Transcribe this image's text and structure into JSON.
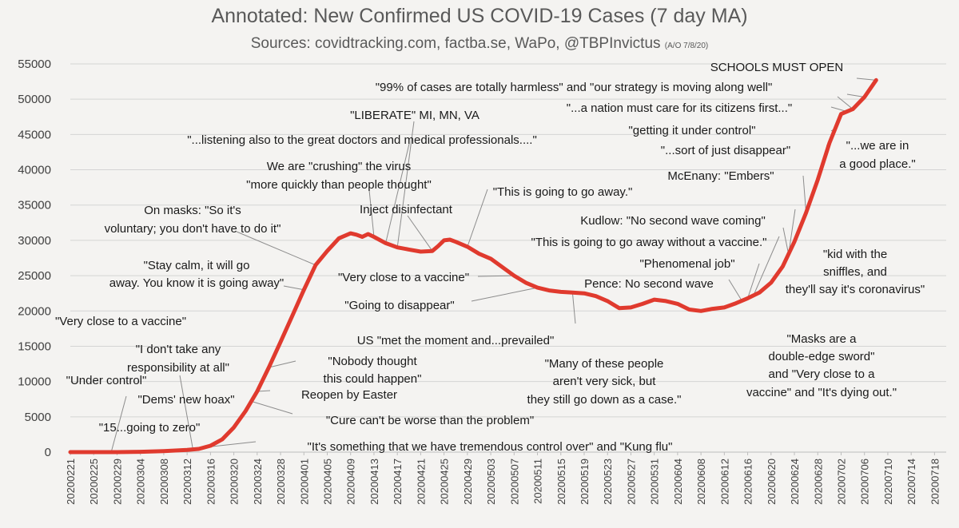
{
  "chart_data": {
    "type": "line",
    "title": "Annotated: New Confirmed US COVID-19 Cases (7 day MA)",
    "subtitle": "Sources: covidtracking.com, factba.se, WaPo, @TBPInvictus",
    "subtitle_note": "(A/O 7/8/20)",
    "xlabel": "",
    "ylabel": "",
    "ylim": [
      0,
      55000
    ],
    "yticks": [
      0,
      5000,
      10000,
      15000,
      20000,
      25000,
      30000,
      35000,
      40000,
      45000,
      50000,
      55000
    ],
    "xticks": [
      "20200221",
      "20200225",
      "20200229",
      "20200304",
      "20200308",
      "20200312",
      "20200316",
      "20200320",
      "20200324",
      "20200328",
      "20200401",
      "20200405",
      "20200409",
      "20200413",
      "20200417",
      "20200421",
      "20200425",
      "20200429",
      "20200503",
      "20200507",
      "20200511",
      "20200515",
      "20200519",
      "20200523",
      "20200527",
      "20200531",
      "20200604",
      "20200608",
      "20200612",
      "20200616",
      "20200620",
      "20200624",
      "20200628",
      "20200702",
      "20200706",
      "20200710",
      "20200714",
      "20200718"
    ],
    "grid": true,
    "line_color": "#e03a2e",
    "x": [
      "2020-02-21",
      "2020-02-25",
      "2020-02-29",
      "2020-03-04",
      "2020-03-08",
      "2020-03-12",
      "2020-03-14",
      "2020-03-16",
      "2020-03-18",
      "2020-03-20",
      "2020-03-22",
      "2020-03-24",
      "2020-03-26",
      "2020-03-28",
      "2020-03-30",
      "2020-04-01",
      "2020-04-03",
      "2020-04-05",
      "2020-04-07",
      "2020-04-09",
      "2020-04-10",
      "2020-04-11",
      "2020-04-12",
      "2020-04-13",
      "2020-04-15",
      "2020-04-17",
      "2020-04-19",
      "2020-04-21",
      "2020-04-23",
      "2020-04-24",
      "2020-04-25",
      "2020-04-26",
      "2020-04-27",
      "2020-04-29",
      "2020-05-01",
      "2020-05-03",
      "2020-05-05",
      "2020-05-07",
      "2020-05-09",
      "2020-05-11",
      "2020-05-13",
      "2020-05-15",
      "2020-05-17",
      "2020-05-19",
      "2020-05-21",
      "2020-05-23",
      "2020-05-25",
      "2020-05-27",
      "2020-05-29",
      "2020-05-31",
      "2020-06-02",
      "2020-06-04",
      "2020-06-06",
      "2020-06-08",
      "2020-06-10",
      "2020-06-12",
      "2020-06-14",
      "2020-06-16",
      "2020-06-18",
      "2020-06-20",
      "2020-06-22",
      "2020-06-24",
      "2020-06-26",
      "2020-06-28",
      "2020-06-30",
      "2020-07-02",
      "2020-07-04",
      "2020-07-06",
      "2020-07-08"
    ],
    "values": [
      0,
      0,
      0,
      50,
      150,
      300,
      450,
      900,
      1800,
      3500,
      5800,
      8600,
      12000,
      15600,
      19300,
      23000,
      26500,
      28500,
      30300,
      31000,
      30800,
      30500,
      30900,
      30500,
      29600,
      29000,
      28700,
      28400,
      28500,
      29200,
      30000,
      30100,
      29800,
      29100,
      28100,
      27400,
      26200,
      25000,
      24000,
      23300,
      22900,
      22700,
      22600,
      22500,
      22100,
      21400,
      20400,
      20500,
      21000,
      21600,
      21400,
      21000,
      20200,
      20000,
      20300,
      20500,
      21100,
      21800,
      22600,
      24000,
      26300,
      29800,
      33900,
      38600,
      43800,
      47900,
      48600,
      50300,
      52700
    ],
    "annotations": [
      {
        "text": "SCHOOLS MUST OPEN",
        "date": "2020-07-08"
      },
      {
        "text": "\"99% of cases are totally harmless\" and \"our strategy is moving along well\"",
        "date": "2020-07-04"
      },
      {
        "text": "\"...a nation must care for its citizens first...\"",
        "date": "2020-07-03"
      },
      {
        "text": "\"getting it under control\"",
        "date": "2020-07-01"
      },
      {
        "text": "\"...sort of just disappear\"",
        "date": "2020-06-29"
      },
      {
        "text": "\"...we are in a good place.\"",
        "date": "2020-07-06"
      },
      {
        "text": "McEnany: \"Embers\"",
        "date": "2020-06-26"
      },
      {
        "text": "Kudlow: \"No second wave coming\"",
        "date": "2020-06-23"
      },
      {
        "text": "\"kid with the sniffles, and they'll say it's coronavirus\"",
        "date": "2020-06-23"
      },
      {
        "text": "\"This is going to go away without a vaccine.\"",
        "date": "2020-06-17"
      },
      {
        "text": "\"Phenomenal job\"",
        "date": "2020-06-16"
      },
      {
        "text": "Pence: No second wave",
        "date": "2020-06-15"
      },
      {
        "text": "\"Masks are a double-edge sword\" and \"Very close to a vaccine\" and \"It's dying out.\"",
        "date": "2020-06-12"
      },
      {
        "text": "\"LIBERATE\" MI, MN, VA",
        "date": "2020-04-17"
      },
      {
        "text": "\"...listening also to the great doctors and medical professionals....\"",
        "date": "2020-04-15"
      },
      {
        "text": "We are \"crushing\" the virus \"more quickly than people thought\"",
        "date": "2020-04-13"
      },
      {
        "text": "Inject disinfectant",
        "date": "2020-04-23"
      },
      {
        "text": "\"This is going to go away.\"",
        "date": "2020-04-29"
      },
      {
        "text": "On masks: \"So it's voluntary; you don't have to do it\"",
        "date": "2020-04-03"
      },
      {
        "text": "\"Stay calm, it will go away. You know it is going away\"",
        "date": "2020-04-01"
      },
      {
        "text": "\"Very close to a vaccine\"",
        "date": "2020-05-07"
      },
      {
        "text": "\"Going to disappear\"",
        "date": "2020-05-11"
      },
      {
        "text": "US \"met the moment and...prevailed\"",
        "date": "2020-05-13"
      },
      {
        "text": "\"Many of these people aren't very sick, but they still go down as a case.\"",
        "date": "2020-05-17"
      },
      {
        "text": "\"Very close to a vaccine\"",
        "date": "2020-02-21"
      },
      {
        "text": "\"I don't take any responsibility at all\"",
        "date": "2020-03-13"
      },
      {
        "text": "\"Nobody thought this could happen\"",
        "date": "2020-03-26"
      },
      {
        "text": "\"Under control\"",
        "date": "2020-02-23"
      },
      {
        "text": "\"Dems' new hoax\"",
        "date": "2020-02-28"
      },
      {
        "text": "Reopen by Easter",
        "date": "2020-03-24"
      },
      {
        "text": "\"15...going to zero\"",
        "date": "2020-03-01"
      },
      {
        "text": "\"Cure can't be worse than the problem\"",
        "date": "2020-03-23"
      },
      {
        "text": "\"It's something that we have tremendous control over\" and \"Kung flu\"",
        "date": "2020-03-10"
      }
    ]
  }
}
